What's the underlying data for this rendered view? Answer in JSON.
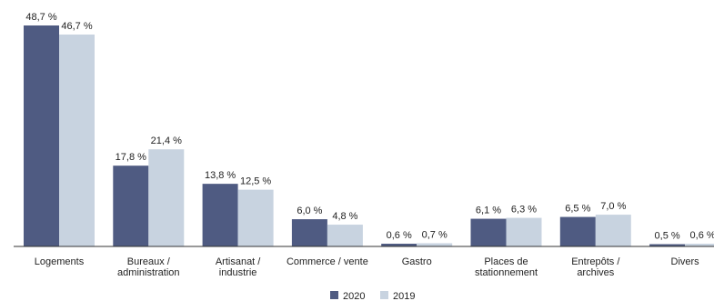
{
  "chart_data": {
    "type": "bar",
    "title": "",
    "xlabel": "",
    "ylabel": "",
    "ylim": [
      0,
      50
    ],
    "grid": false,
    "legend_position": "bottom-center",
    "categories": [
      [
        "Logements"
      ],
      [
        "Bureaux /",
        "administration"
      ],
      [
        "Artisanat /",
        "industrie"
      ],
      [
        "Commerce / vente"
      ],
      [
        "Gastro"
      ],
      [
        "Places de",
        "stationnement"
      ],
      [
        "Entrepôts /",
        "archives"
      ],
      [
        "Divers"
      ]
    ],
    "series": [
      {
        "name": "2020",
        "color": "#4f5b82",
        "values": [
          48.7,
          17.8,
          13.8,
          6.0,
          0.6,
          6.1,
          6.5,
          0.5
        ],
        "labels": [
          "48,7 %",
          "17,8 %",
          "13,8 %",
          "6,0 %",
          "0,6 %",
          "6,1 %",
          "6,5 %",
          "0,5 %"
        ]
      },
      {
        "name": "2019",
        "color": "#c8d3e0",
        "values": [
          46.7,
          21.4,
          12.5,
          4.8,
          0.7,
          6.3,
          7.0,
          0.6
        ],
        "labels": [
          "46,7 %",
          "21,4 %",
          "12,5 %",
          "4,8 %",
          "0,7 %",
          "6,3 %",
          "7,0 %",
          "0,6 %"
        ]
      }
    ]
  }
}
